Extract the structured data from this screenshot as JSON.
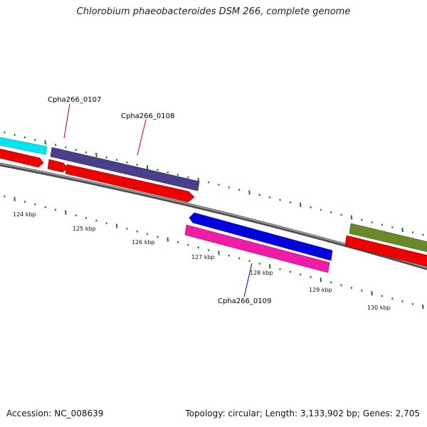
{
  "title": "Chlorobium phaeobacteroides DSM 266, complete genome",
  "footer": {
    "accession": "Accession: NC_008639",
    "summary": "Topology: circular; Length: 3,133,902 bp; Genes: 2,705"
  },
  "colors": {
    "backbone": "#7a7a7a",
    "tick": "#1a7a1a",
    "cds_red": "#ee0000",
    "cyan": "#00e5f0",
    "slate": "#4a3f8a",
    "blue": "#0000e0",
    "magenta": "#f01ca8",
    "olive": "#6a8a2a",
    "label_red": "#cc0000",
    "label_blue": "#0000bb"
  },
  "scale": {
    "unit": "kbp",
    "ticks": [
      {
        "value": 124,
        "label": "124 kbp"
      },
      {
        "value": 125,
        "label": "125 kbp"
      },
      {
        "value": 126,
        "label": "126 kbp"
      },
      {
        "value": 127,
        "label": "127 kbp"
      },
      {
        "value": 128,
        "label": "128 kbp"
      },
      {
        "value": 129,
        "label": "129 kbp"
      },
      {
        "value": 130,
        "label": "130 kbp"
      }
    ]
  },
  "gene_labels": [
    {
      "id": "Cpha266_0107",
      "text": "Cpha266_0107",
      "color": "#cc0000"
    },
    {
      "id": "Cpha266_0108",
      "text": "Cpha266_0108",
      "color": "#cc0000"
    },
    {
      "id": "Cpha266_0109",
      "text": "Cpha266_0109",
      "color": "#0000bb"
    }
  ]
}
